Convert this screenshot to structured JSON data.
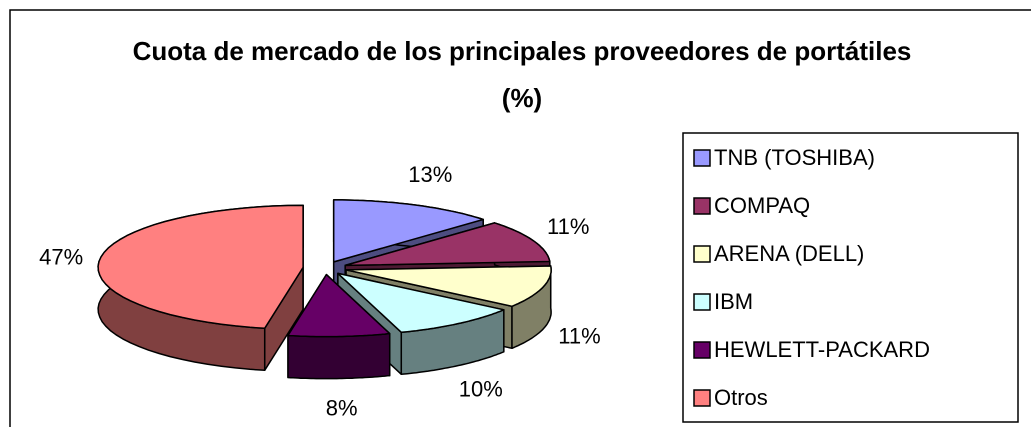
{
  "chart_data": {
    "type": "pie3d",
    "title": "Cuota de mercado de los principales proveedores de portátiles (%)",
    "categories": [
      "TNB (TOSHIBA)",
      "COMPAQ",
      "ARENA (DELL)",
      "IBM",
      "HEWLETT-PACKARD",
      "Otros"
    ],
    "values": [
      13,
      11,
      11,
      10,
      8,
      47
    ],
    "value_labels": [
      "13%",
      "11%",
      "11%",
      "10%",
      "8%",
      "47%"
    ],
    "colors": [
      "#9999ff",
      "#993366",
      "#ffffcc",
      "#ccffff",
      "#660066",
      "#ff8080"
    ],
    "legend": "right"
  }
}
